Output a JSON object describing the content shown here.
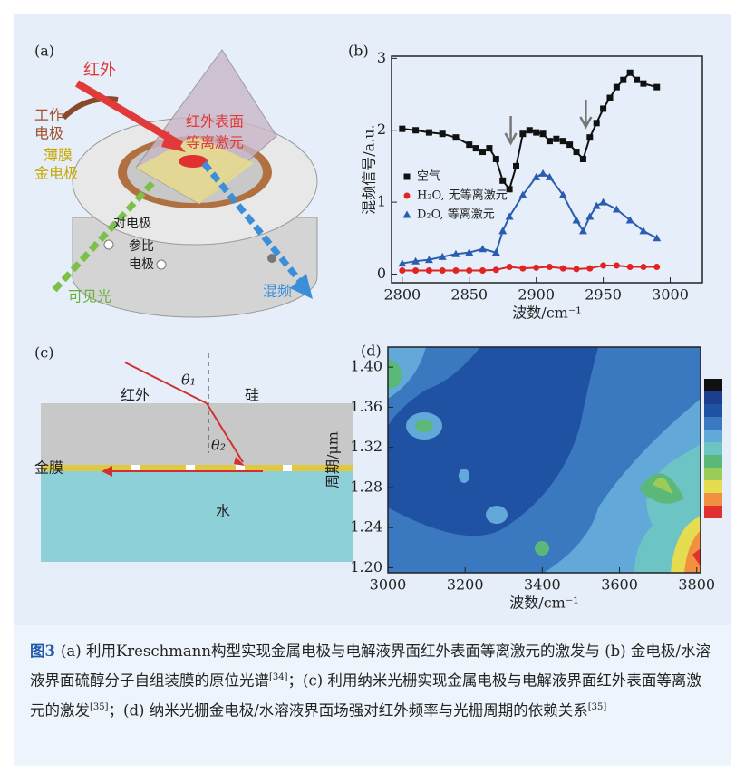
{
  "panels": {
    "a": {
      "label": "(a)",
      "ir": "红外",
      "work_electrode": [
        "工作",
        "电极"
      ],
      "film_electrode": [
        "薄膜",
        "金电极"
      ],
      "plasmon": [
        "红外表面",
        "等离激元"
      ],
      "counter": "对电极",
      "reference": [
        "参比",
        "电极"
      ],
      "visible": "可见光",
      "sfg": "混频"
    },
    "c": {
      "label": "(c)",
      "theta1": "θ₁",
      "ir": "红外",
      "si": "硅",
      "theta2": "θ₂",
      "gold": "金膜",
      "water": "水"
    }
  },
  "chart_data": [
    {
      "type": "scatter-line",
      "label": "(b)",
      "xlabel": "波数/cm⁻¹",
      "ylabel": "混频信号/a.u.",
      "xlim": [
        2792,
        3024
      ],
      "ylim": [
        -0.12,
        3.03
      ],
      "xticks": [
        2800,
        2850,
        2900,
        2950,
        3000
      ],
      "yticks": [
        0,
        1,
        2,
        3
      ],
      "series": [
        {
          "name": "空气",
          "color": "#111111",
          "marker": "square",
          "x": [
            2800,
            2810,
            2820,
            2830,
            2840,
            2850,
            2855,
            2860,
            2865,
            2870,
            2875,
            2880,
            2885,
            2890,
            2895,
            2900,
            2905,
            2910,
            2915,
            2920,
            2925,
            2930,
            2935,
            2940,
            2945,
            2950,
            2955,
            2960,
            2965,
            2970,
            2975,
            2980,
            2990
          ],
          "values": [
            2.02,
            2.0,
            1.97,
            1.95,
            1.9,
            1.8,
            1.75,
            1.7,
            1.75,
            1.6,
            1.3,
            1.18,
            1.5,
            1.95,
            2.0,
            1.97,
            1.95,
            1.85,
            1.88,
            1.85,
            1.8,
            1.7,
            1.6,
            1.9,
            2.1,
            2.3,
            2.45,
            2.6,
            2.7,
            2.8,
            2.7,
            2.65,
            2.6
          ]
        },
        {
          "name": "H₂O, 无等离激元",
          "color": "#e02424",
          "marker": "circle",
          "x": [
            2800,
            2810,
            2820,
            2830,
            2840,
            2850,
            2860,
            2870,
            2880,
            2890,
            2900,
            2910,
            2920,
            2930,
            2940,
            2950,
            2960,
            2970,
            2980,
            2990
          ],
          "values": [
            0.05,
            0.05,
            0.05,
            0.05,
            0.05,
            0.05,
            0.05,
            0.06,
            0.1,
            0.08,
            0.09,
            0.1,
            0.08,
            0.07,
            0.08,
            0.12,
            0.12,
            0.1,
            0.1,
            0.1
          ]
        },
        {
          "name": "D₂O, 等离激元",
          "color": "#2a5db0",
          "marker": "triangle",
          "x": [
            2800,
            2810,
            2820,
            2830,
            2840,
            2850,
            2860,
            2870,
            2875,
            2880,
            2890,
            2900,
            2905,
            2910,
            2920,
            2930,
            2935,
            2940,
            2945,
            2950,
            2960,
            2970,
            2980,
            2990
          ],
          "values": [
            0.15,
            0.18,
            0.2,
            0.24,
            0.28,
            0.3,
            0.35,
            0.3,
            0.6,
            0.8,
            1.1,
            1.35,
            1.4,
            1.35,
            1.1,
            0.75,
            0.6,
            0.8,
            0.95,
            1.0,
            0.9,
            0.75,
            0.6,
            0.5
          ]
        }
      ]
    },
    {
      "type": "contour",
      "label": "(d)",
      "xlabel": "波数/cm⁻¹",
      "ylabel": "周期/μm",
      "xlim": [
        3000,
        3810
      ],
      "ylim": [
        1.195,
        1.42
      ],
      "xticks": [
        3000,
        3200,
        3400,
        3600,
        3800
      ],
      "yticks": [
        {
          "value": 1.2,
          "label": "1.20"
        },
        {
          "value": 1.24,
          "label": "1.24"
        },
        {
          "value": 1.28,
          "label": "1.28"
        },
        {
          "value": 1.32,
          "label": "1.32"
        },
        {
          "value": 1.36,
          "label": "1.36"
        },
        {
          "value": 1.4,
          "label": "1.40"
        }
      ],
      "colors": [
        "#111111",
        "#1b3f8f",
        "#2052a3",
        "#3a78c0",
        "#62a8d8",
        "#6cc4c4",
        "#5cb878",
        "#9ccc58",
        "#e6dc50",
        "#f09040",
        "#e03030"
      ]
    }
  ],
  "caption": {
    "label": "图3",
    "segments": [
      "(a) 利用Kreschmann构型实现金属电极与电解液界面红外表面等离激元的激发与 (b) 金电极/水溶液界面硫醇分子自组装膜的原位光谱",
      "[34]",
      "；(c) 利用纳米光栅实现金属电极与电解液界面红外表面等离激元的激发",
      "[35]",
      "；(d) 纳米光栅金电极/水溶液界面场强对红外频率与光栅周期的依赖关系",
      "[35]"
    ]
  }
}
